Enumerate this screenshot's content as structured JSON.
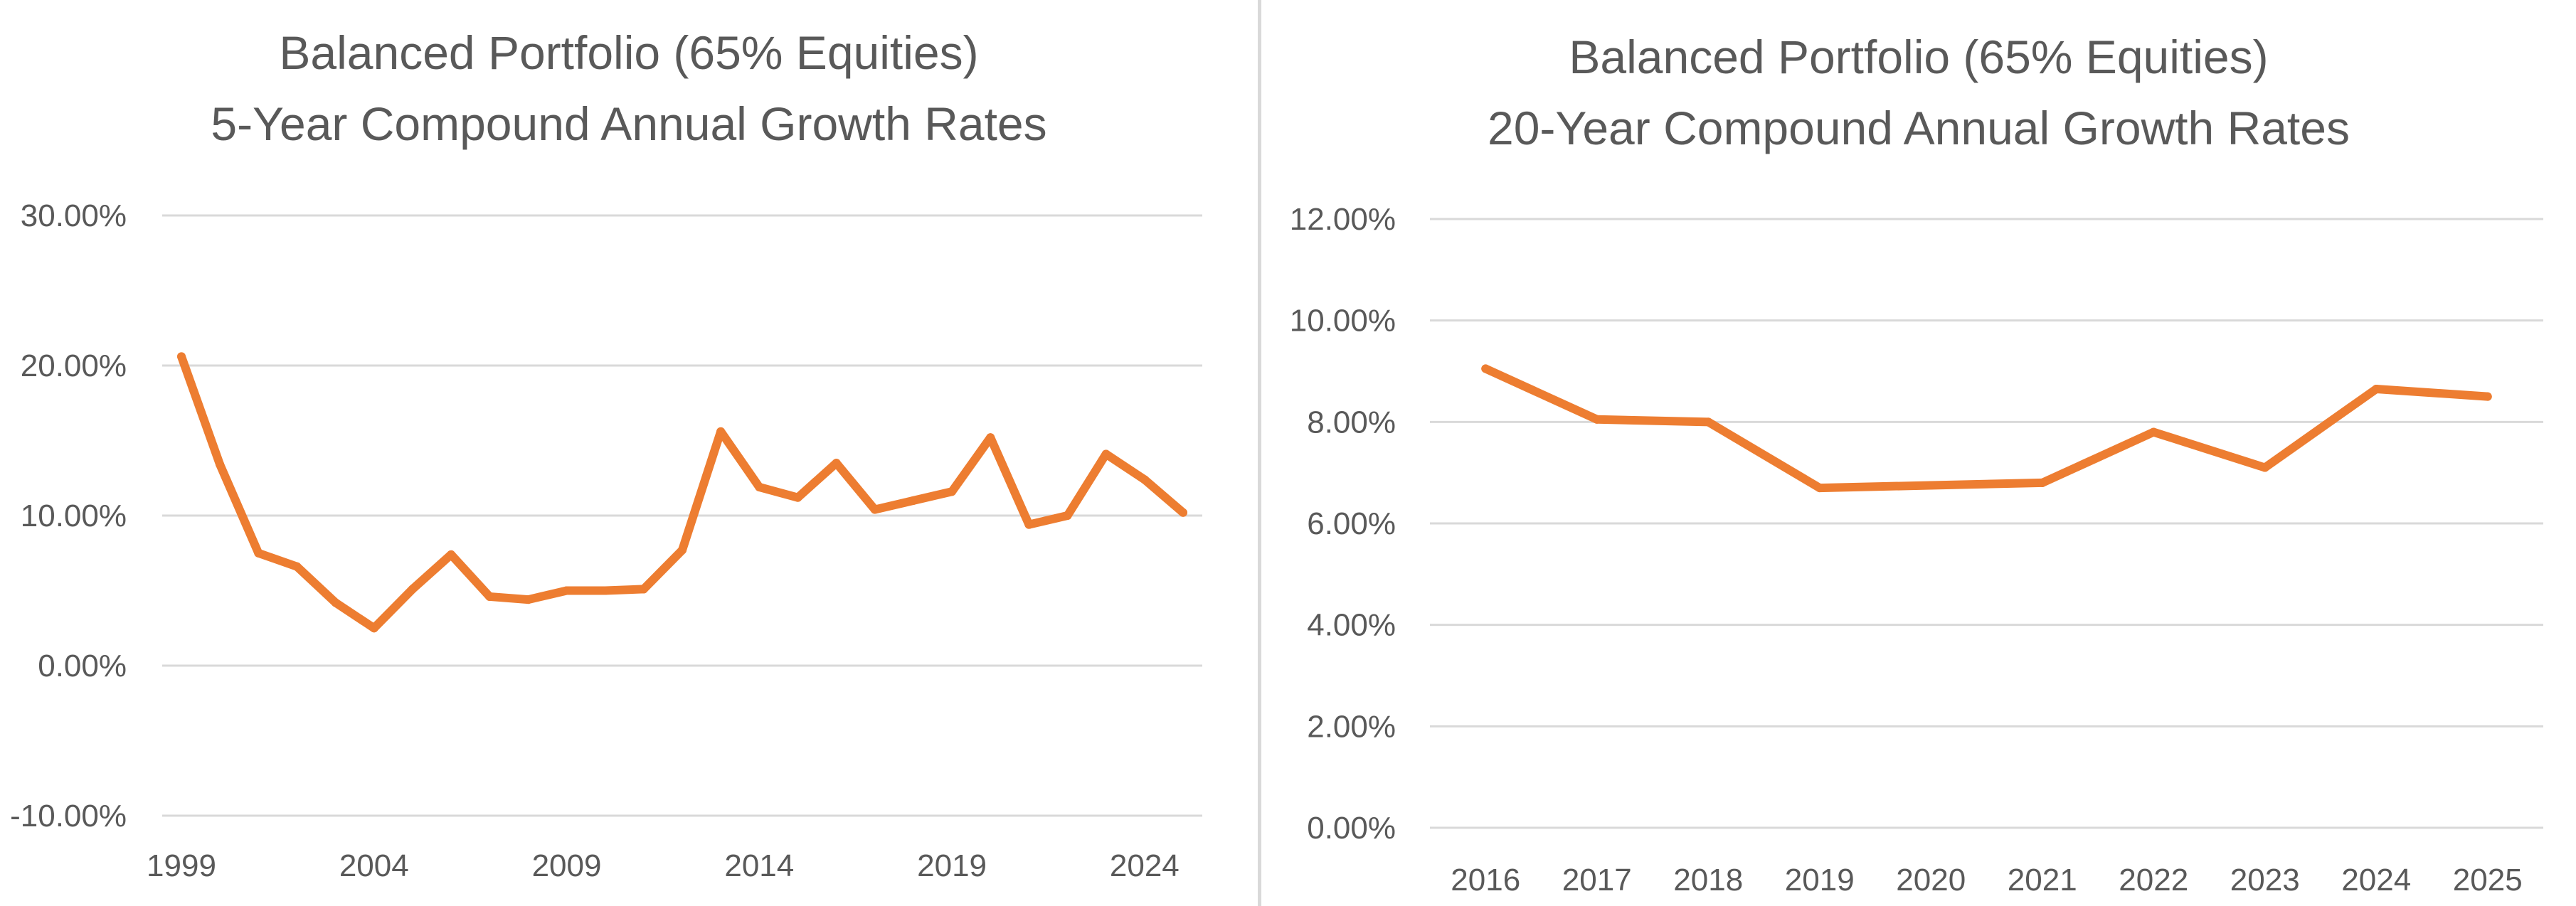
{
  "colors": {
    "series": "#ED7D31",
    "grid": "#D9D9D9",
    "text": "#595959"
  },
  "chart_data": [
    {
      "type": "line",
      "title": "Balanced Portfolio (65% Equities)",
      "subtitle": "5-Year Compound Annual Growth Rates",
      "xlabel": "",
      "ylabel": "",
      "ylim": [
        -10,
        30
      ],
      "yticks": [
        -10,
        0,
        10,
        20,
        30
      ],
      "ytick_labels": [
        "-10.00%",
        "0.00%",
        "10.00%",
        "20.00%",
        "30.00%"
      ],
      "xlim": [
        1999,
        2025
      ],
      "xticks": [
        1999,
        2004,
        2009,
        2014,
        2019,
        2024
      ],
      "xtick_labels": [
        "1999",
        "2004",
        "2009",
        "2014",
        "2019",
        "2024"
      ],
      "grid": true,
      "legend": "none",
      "x": [
        1999,
        2000,
        2001,
        2002,
        2003,
        2004,
        2005,
        2006,
        2007,
        2008,
        2009,
        2010,
        2011,
        2012,
        2013,
        2014,
        2015,
        2016,
        2017,
        2018,
        2019,
        2020,
        2021,
        2022,
        2023,
        2024,
        2025
      ],
      "values": [
        20.6,
        13.4,
        7.5,
        6.6,
        4.2,
        2.5,
        5.1,
        7.4,
        4.6,
        4.4,
        5.0,
        5.0,
        5.1,
        7.7,
        15.6,
        11.9,
        11.2,
        13.5,
        10.4,
        11.0,
        11.6,
        15.2,
        9.4,
        10.0,
        14.1,
        12.4,
        10.2
      ]
    },
    {
      "type": "line",
      "title": "Balanced Portfolio (65% Equities)",
      "subtitle": "20-Year Compound Annual  Growth Rates",
      "xlabel": "",
      "ylabel": "",
      "ylim": [
        0,
        12
      ],
      "yticks": [
        0,
        2,
        4,
        6,
        8,
        10,
        12
      ],
      "ytick_labels": [
        "0.00%",
        "2.00%",
        "4.00%",
        "6.00%",
        "8.00%",
        "10.00%",
        "12.00%"
      ],
      "categories": [
        "2016",
        "2017",
        "2018",
        "2019",
        "2020",
        "2021",
        "2022",
        "2023",
        "2024",
        "2025"
      ],
      "grid": true,
      "legend": "none",
      "values": [
        9.05,
        8.05,
        8.0,
        6.7,
        6.75,
        6.8,
        7.8,
        7.1,
        8.65,
        8.5
      ]
    }
  ]
}
